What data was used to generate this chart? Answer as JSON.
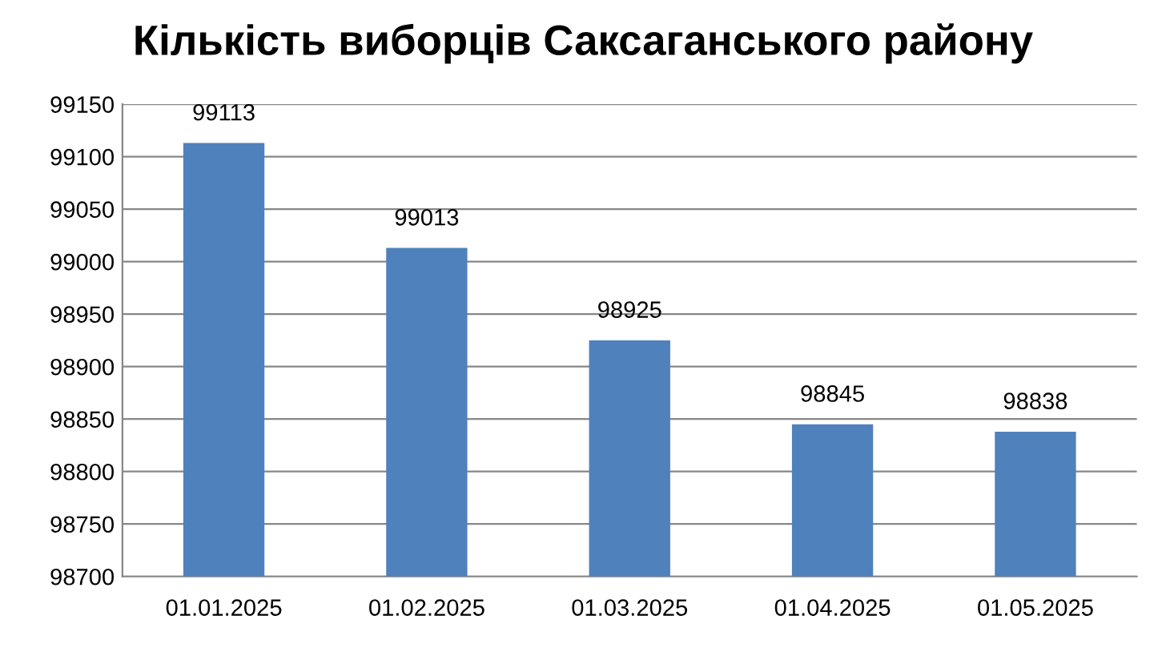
{
  "chart_data": {
    "type": "bar",
    "title": "Кількість виборців Саксаганського району",
    "categories": [
      "01.01.2025",
      "01.02.2025",
      "01.03.2025",
      "01.04.2025",
      "01.05.2025"
    ],
    "values": [
      99113,
      99013,
      98925,
      98845,
      98838
    ],
    "color": "#4f81bd",
    "ylim": [
      98700,
      99150
    ],
    "yticks": [
      98700,
      98750,
      98800,
      98850,
      98900,
      98950,
      99000,
      99050,
      99100,
      99150
    ],
    "grid": "y",
    "data_labels": true,
    "legend": false
  }
}
